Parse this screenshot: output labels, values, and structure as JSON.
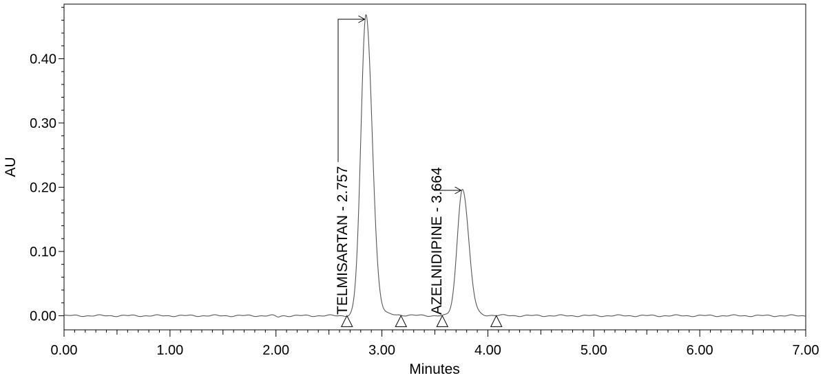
{
  "chart_data": {
    "type": "line",
    "xlabel": "Minutes",
    "ylabel": "AU",
    "xlim": [
      0,
      7
    ],
    "ylim": [
      -0.022,
      0.485
    ],
    "x_ticks": [
      "0.00",
      "1.00",
      "2.00",
      "3.00",
      "4.00",
      "5.00",
      "6.00",
      "7.00"
    ],
    "y_ticks": [
      "0.00",
      "0.10",
      "0.20",
      "0.30",
      "0.40"
    ],
    "baseline_value": 0.0,
    "peaks": [
      {
        "name": "TELMISARTAN",
        "retention_time": 2.757,
        "label": "TELMISARTAN - 2.757",
        "apex_minutes": 2.85,
        "height_au": 0.468,
        "start_marker_minutes": 2.67,
        "end_marker_minutes": 3.18
      },
      {
        "name": "AZELNIDIPINE",
        "retention_time": 3.664,
        "label": "AZELNIDIPINE - 3.664",
        "apex_minutes": 3.76,
        "height_au": 0.198,
        "start_marker_minutes": 3.57,
        "end_marker_minutes": 4.08
      }
    ],
    "grid": false,
    "line_color": "#555555"
  }
}
